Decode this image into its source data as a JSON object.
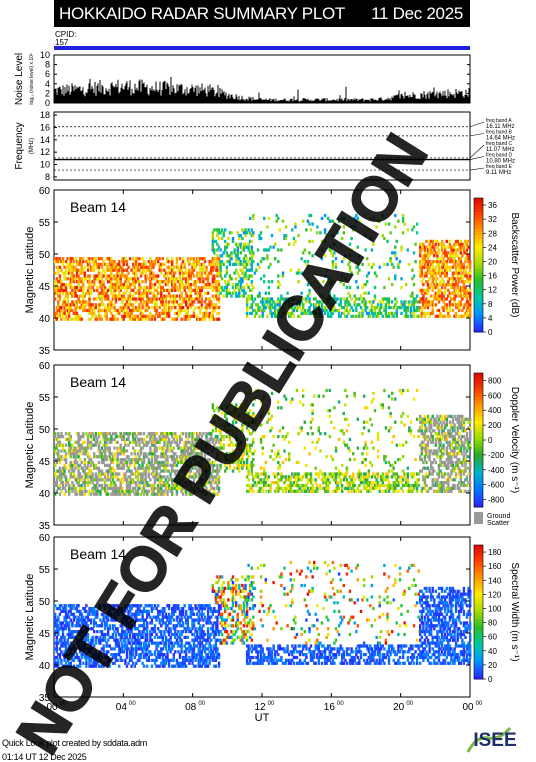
{
  "header": {
    "title": "HOKKAIDO RADAR SUMMARY PLOT",
    "date": "11 Dec 2025"
  },
  "cpid": {
    "label": "CPID:",
    "value": "157"
  },
  "footer": {
    "line1": "Quick Look plot created by sddata.adm",
    "line2": "01:14 UT 12 Dec 2025"
  },
  "logo": {
    "text": "ISEE",
    "colors": [
      "#1e2d6b",
      "#7ab648"
    ]
  },
  "watermark": {
    "text": "NOT FOR PUBLICATION",
    "color": "#000000"
  },
  "chart_data": [
    {
      "type": "area",
      "name": "noise",
      "ylabel": "Noise Level",
      "ylabel_sub": "log₁₀ (noise level) x 10²",
      "ylim": [
        0,
        10
      ],
      "yticks": [
        0,
        2,
        4,
        6,
        8,
        10
      ],
      "xlim": [
        0,
        24
      ],
      "x": [
        0,
        1,
        2,
        3,
        4,
        5,
        6,
        7,
        8,
        9,
        10,
        11,
        12,
        13,
        14,
        15,
        16,
        17,
        18,
        19,
        20,
        21,
        22,
        23,
        24
      ],
      "values": [
        3.0,
        3.2,
        3.5,
        3.8,
        4.0,
        3.8,
        3.6,
        3.5,
        3.4,
        3.0,
        2.0,
        1.2,
        0.8,
        0.8,
        0.8,
        0.8,
        0.8,
        0.8,
        0.8,
        1.0,
        1.6,
        2.0,
        2.2,
        2.4,
        2.5
      ]
    },
    {
      "type": "line",
      "name": "frequency",
      "ylabel": "Frequency",
      "ylabel_sub": "(MHz)",
      "ylim": [
        7.5,
        18.5
      ],
      "yticks": [
        8,
        10,
        12,
        14,
        16,
        18
      ],
      "xlim": [
        0,
        24
      ],
      "bands": [
        {
          "label": "freq band A",
          "value_label": "16.11 MHz",
          "value": 16.11
        },
        {
          "label": "freq band B",
          "value_label": "14.64 MHz",
          "value": 14.64
        },
        {
          "label": "freq band C",
          "value_label": "11.07 MHz",
          "value": 11.07
        },
        {
          "label": "freq band D",
          "value_label": "10.80 MHz",
          "value": 10.8
        },
        {
          "label": "freq band E",
          "value_label": "9.11 MHz",
          "value": 9.11
        }
      ],
      "operating": {
        "x": [
          0,
          24
        ],
        "values": [
          10.8,
          10.8
        ]
      }
    },
    {
      "type": "heatmap",
      "name": "power",
      "panel_label": "Beam 14",
      "ylabel": "Magnetic Latitude",
      "ylim": [
        35,
        60
      ],
      "yticks": [
        35,
        40,
        45,
        50,
        55,
        60
      ],
      "xlim": [
        0,
        24
      ],
      "colorbar": {
        "label": "Backscatter Power (dB)",
        "ticks": [
          0,
          4,
          8,
          12,
          16,
          20,
          24,
          28,
          32,
          36
        ],
        "range": [
          0,
          38
        ]
      },
      "ground_scatter": false
    },
    {
      "type": "heatmap",
      "name": "velocity",
      "panel_label": "Beam 14",
      "ylabel": "Magnetic Latitude",
      "ylim": [
        35,
        60
      ],
      "yticks": [
        35,
        40,
        45,
        50,
        55,
        60
      ],
      "xlim": [
        0,
        24
      ],
      "colorbar": {
        "label": "Doppler Velocity (m s⁻¹)",
        "ticks": [
          -800,
          -600,
          -400,
          -200,
          0,
          200,
          400,
          600,
          800
        ],
        "range": [
          -900,
          900
        ]
      },
      "ground_scatter": true,
      "ground_label": [
        "Ground",
        "Scatter"
      ]
    },
    {
      "type": "heatmap",
      "name": "width",
      "panel_label": "Beam 14",
      "ylabel": "Magnetic Latitude",
      "ylim": [
        35,
        60
      ],
      "yticks": [
        35,
        40,
        45,
        50,
        55,
        60
      ],
      "xlim": [
        0,
        24
      ],
      "xlabel": "UT",
      "xticks": [
        "00",
        "04",
        "08",
        "12",
        "16",
        "20",
        "00"
      ],
      "xticks_sup": "00",
      "colorbar": {
        "label": "Spectral Width (m s⁻¹)",
        "ticks": [
          0,
          20,
          40,
          60,
          80,
          100,
          120,
          140,
          160,
          180
        ],
        "range": [
          0,
          190
        ]
      },
      "ground_scatter": false
    }
  ]
}
